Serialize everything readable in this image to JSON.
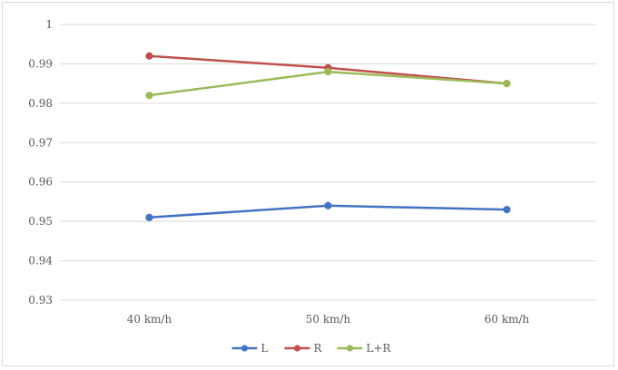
{
  "chart_data": {
    "type": "line",
    "categories": [
      "40 km/h",
      "50 km/h",
      "60 km/h"
    ],
    "y_ticks": [
      "0.93",
      "0.94",
      "0.95",
      "0.96",
      "0.97",
      "0.98",
      "0.99",
      "1"
    ],
    "ylim": [
      0.93,
      1.0
    ],
    "grid": true,
    "legend_position": "bottom",
    "series": [
      {
        "name": "L",
        "color": "#4472c4",
        "values": [
          0.951,
          0.954,
          0.953
        ]
      },
      {
        "name": "R",
        "color": "#c0504d",
        "values": [
          0.992,
          0.989,
          0.985
        ]
      },
      {
        "name": "L+R",
        "color": "#9bbb59",
        "values": [
          0.982,
          0.988,
          0.985
        ]
      }
    ]
  }
}
